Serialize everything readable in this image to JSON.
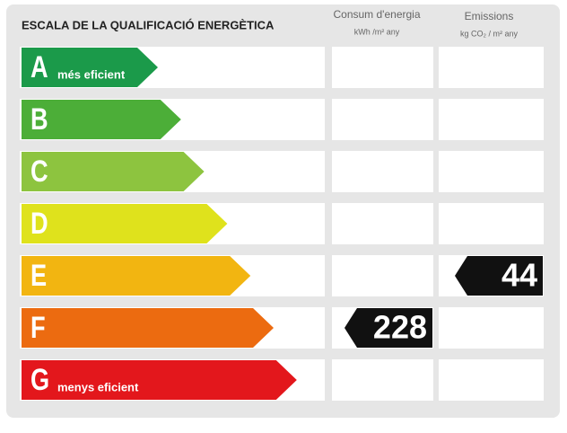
{
  "title": "ESCALA DE LA QUALIFICACIÓ ENERGÈTICA",
  "columns": [
    {
      "title": "Consum d'energia",
      "unit": "kWh /m² any"
    },
    {
      "title": "Emissions",
      "unit": "kg CO₂ / m² any"
    }
  ],
  "ratings": [
    {
      "letter": "A",
      "label": "més eficient",
      "color": "#1b9a4a"
    },
    {
      "letter": "B",
      "color": "#4cae38"
    },
    {
      "letter": "C",
      "color": "#8dc43f"
    },
    {
      "letter": "D",
      "color": "#dfe21c"
    },
    {
      "letter": "E",
      "color": "#f2b511"
    },
    {
      "letter": "F",
      "color": "#ec6b10"
    },
    {
      "letter": "G",
      "label": "menys eficient",
      "color": "#e3171c"
    }
  ],
  "results": [
    {
      "column": 0,
      "rating": "F",
      "value": 228
    },
    {
      "column": 1,
      "rating": "E",
      "value": 44
    }
  ]
}
